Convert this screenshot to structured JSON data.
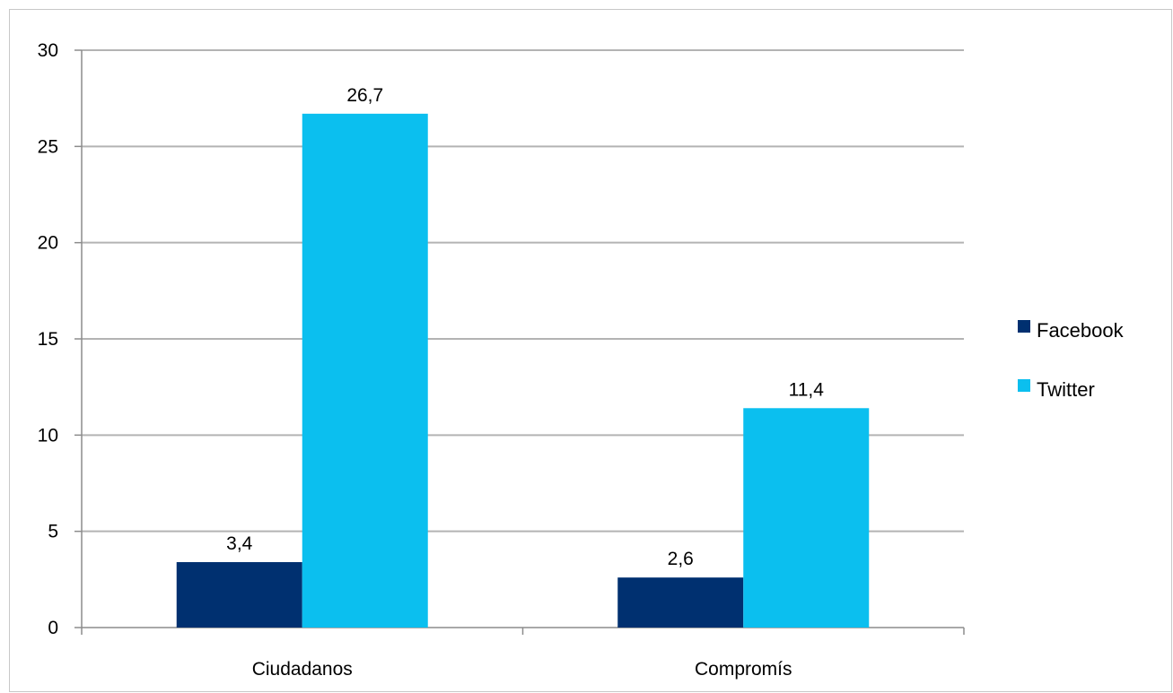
{
  "chart_data": {
    "type": "bar",
    "categories": [
      "Ciudadanos",
      "Compromís"
    ],
    "series": [
      {
        "name": "Facebook",
        "values": [
          3.4,
          2.6
        ],
        "labels": [
          "3,4",
          "2,6"
        ],
        "color": "#003070"
      },
      {
        "name": "Twitter",
        "values": [
          26.7,
          11.4
        ],
        "labels": [
          "26,7",
          "11,4"
        ],
        "color": "#0bbfef"
      }
    ],
    "ylim": [
      0,
      30
    ],
    "yticks": [
      "0",
      "5",
      "10",
      "15",
      "20",
      "25",
      "30"
    ],
    "grid": true,
    "legend_position": "right",
    "gridline_color": "#b3b3b3",
    "axis_color": "#8c8c8c"
  }
}
